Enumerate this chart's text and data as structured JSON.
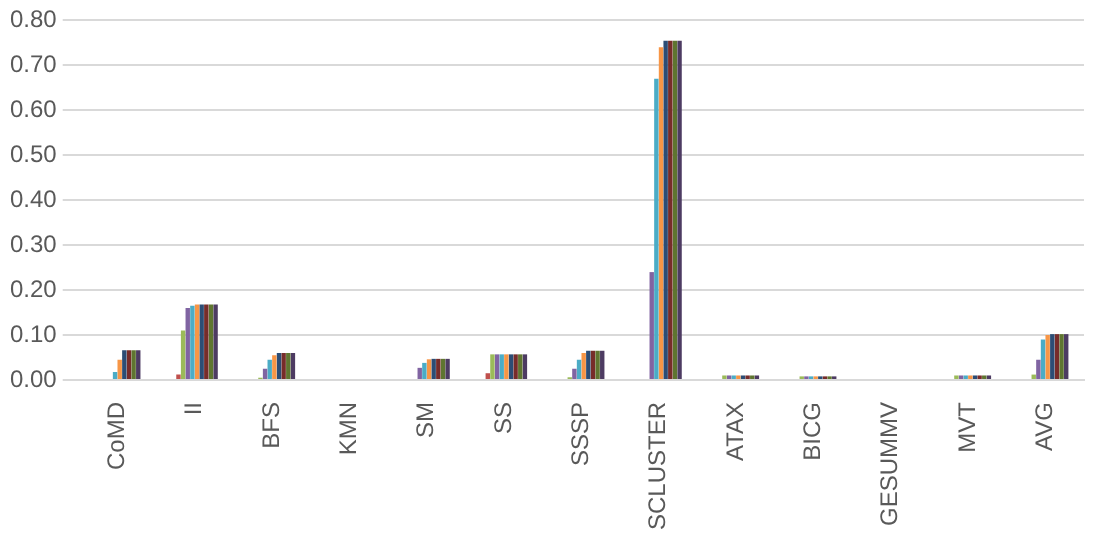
{
  "chart_data": {
    "type": "bar",
    "categories": [
      "CoMD",
      "II",
      "BFS",
      "KMN",
      "SM",
      "SS",
      "SSSP",
      "SCLUSTER",
      "ATAX",
      "BICG",
      "GESUMMV",
      "MVT",
      "AVG"
    ],
    "series": [
      {
        "color": "#4f81bd",
        "values": [
          0,
          0,
          0,
          0,
          0,
          0,
          0,
          0,
          0,
          0,
          0,
          0,
          0
        ]
      },
      {
        "color": "#c0504d",
        "values": [
          0,
          0.012,
          0,
          0,
          0,
          0.015,
          0,
          0,
          0,
          0,
          0,
          0,
          0
        ]
      },
      {
        "color": "#9bbb59",
        "values": [
          0,
          0.11,
          0.005,
          0,
          0,
          0.057,
          0.006,
          0,
          0.01,
          0.008,
          0,
          0.01,
          0.012
        ]
      },
      {
        "color": "#8064a2",
        "values": [
          0.002,
          0.16,
          0.025,
          0,
          0.027,
          0.057,
          0.025,
          0.24,
          0.01,
          0.008,
          0,
          0.01,
          0.045
        ]
      },
      {
        "color": "#4bacc6",
        "values": [
          0.018,
          0.165,
          0.045,
          0,
          0.038,
          0.057,
          0.045,
          0.67,
          0.01,
          0.008,
          0,
          0.01,
          0.09
        ]
      },
      {
        "color": "#f79646",
        "values": [
          0.045,
          0.168,
          0.055,
          0,
          0.046,
          0.057,
          0.06,
          0.74,
          0.01,
          0.008,
          0,
          0.01,
          0.1
        ]
      },
      {
        "color": "#2c4d75",
        "values": [
          0.066,
          0.168,
          0.06,
          0,
          0.047,
          0.057,
          0.065,
          0.755,
          0.01,
          0.008,
          0,
          0.01,
          0.102
        ]
      },
      {
        "color": "#772c2a",
        "values": [
          0.066,
          0.168,
          0.06,
          0,
          0.047,
          0.057,
          0.065,
          0.755,
          0.01,
          0.008,
          0,
          0.01,
          0.102
        ]
      },
      {
        "color": "#5f7530",
        "values": [
          0.066,
          0.168,
          0.06,
          0,
          0.047,
          0.057,
          0.065,
          0.755,
          0.01,
          0.008,
          0,
          0.01,
          0.102
        ]
      },
      {
        "color": "#4d3b62",
        "values": [
          0.066,
          0.168,
          0.06,
          0,
          0.047,
          0.057,
          0.065,
          0.755,
          0.01,
          0.008,
          0,
          0.01,
          0.102
        ]
      }
    ],
    "ylim": [
      0,
      0.8
    ],
    "yticks": [
      {
        "value": 0,
        "label": "0.00"
      },
      {
        "value": 0.1,
        "label": "0.10"
      },
      {
        "value": 0.2,
        "label": "0.20"
      },
      {
        "value": 0.3,
        "label": "0.30"
      },
      {
        "value": 0.4,
        "label": "0.40"
      },
      {
        "value": 0.5,
        "label": "0.50"
      },
      {
        "value": 0.6,
        "label": "0.60"
      },
      {
        "value": 0.7,
        "label": "0.70"
      },
      {
        "value": 0.8,
        "label": "0.80"
      }
    ],
    "grid": "y",
    "legend": false
  }
}
